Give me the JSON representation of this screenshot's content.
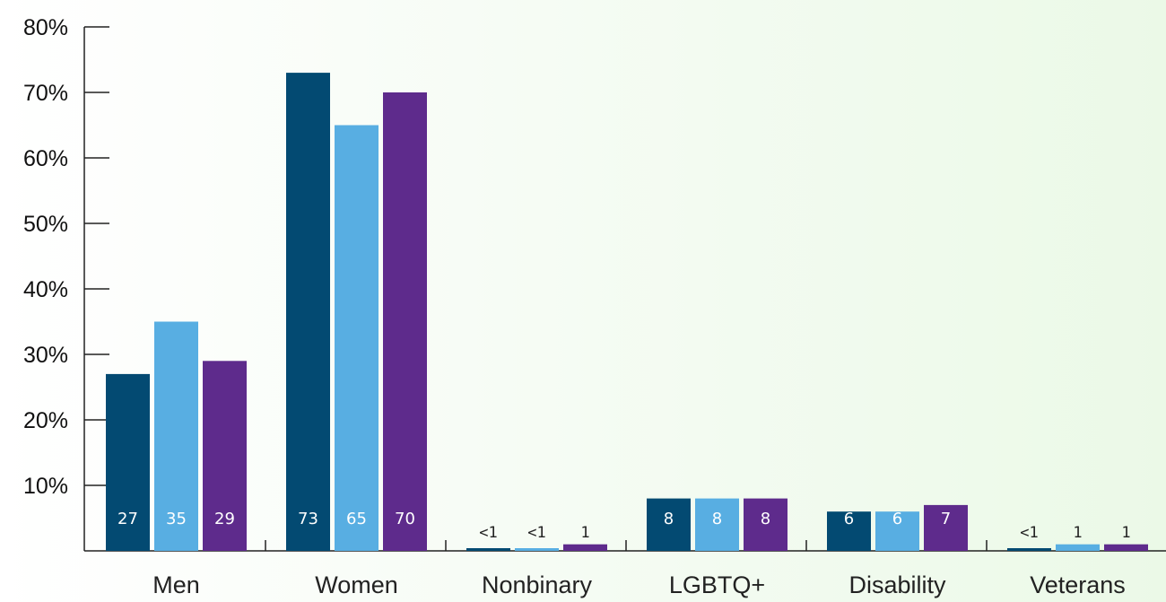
{
  "chart_data": {
    "type": "bar",
    "title": "",
    "xlabel": "",
    "ylabel": "",
    "ylim": [
      0,
      80
    ],
    "yticks": [
      "10%",
      "20%",
      "30%",
      "40%",
      "50%",
      "60%",
      "70%",
      "80%"
    ],
    "ytick_values": [
      10,
      20,
      30,
      40,
      50,
      60,
      70,
      80
    ],
    "grid": false,
    "legend": "none",
    "categories": [
      "Men",
      "Women",
      "Nonbinary",
      "LGBTQ+",
      "Disability",
      "Veterans"
    ],
    "series": [
      {
        "color": "#034a72",
        "values": [
          27,
          73,
          0.4,
          8,
          6,
          0.4
        ],
        "labels": [
          "27",
          "73",
          "<1",
          "8",
          "6",
          "<1"
        ]
      },
      {
        "color": "#58aee2",
        "values": [
          35,
          65,
          0.4,
          8,
          6,
          1
        ],
        "labels": [
          "35",
          "65",
          "<1",
          "8",
          "6",
          "1"
        ]
      },
      {
        "color": "#5e2b8c",
        "values": [
          29,
          70,
          1,
          8,
          7,
          1
        ],
        "labels": [
          "29",
          "70",
          "1",
          "8",
          "7",
          "1"
        ]
      }
    ]
  }
}
